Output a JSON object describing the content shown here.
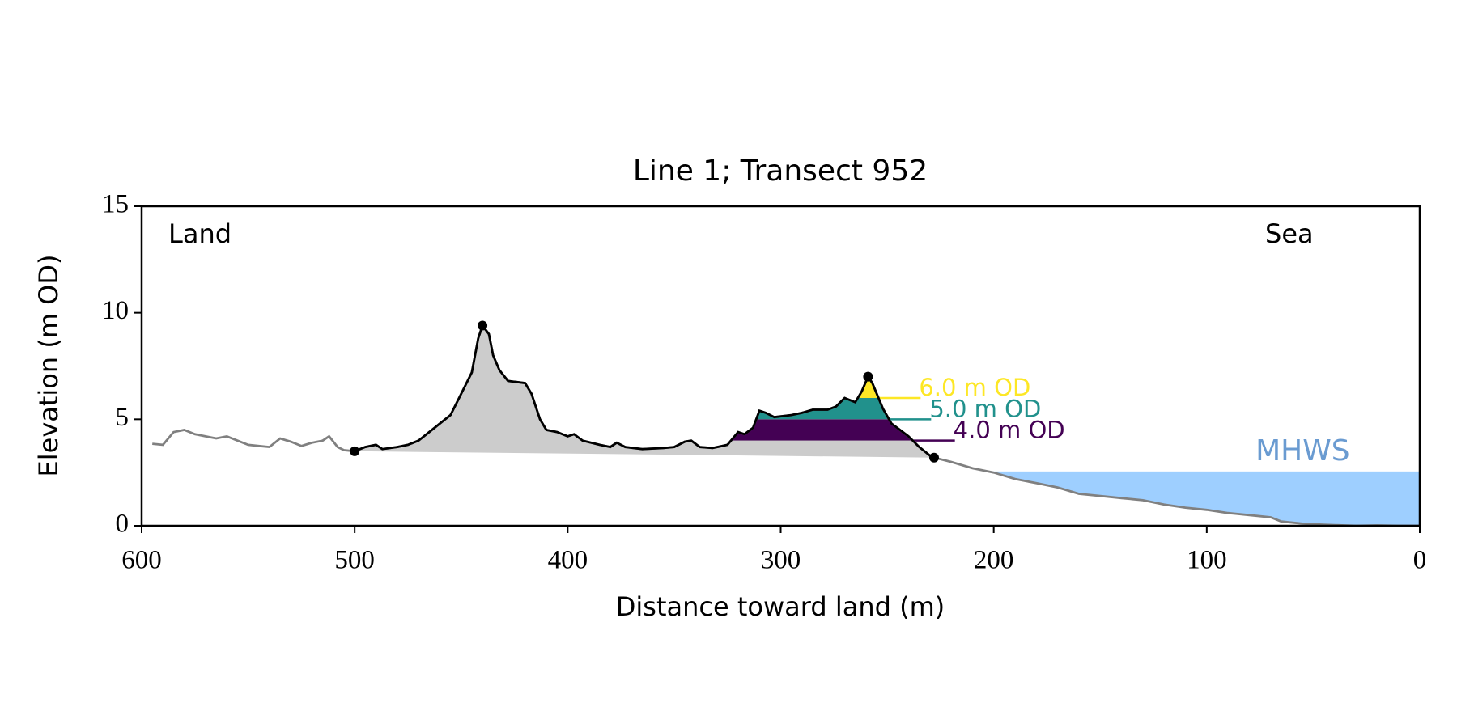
{
  "chart_data": {
    "type": "profile",
    "title": "Line 1; Transect 952",
    "xlabel": "Distance toward land (m)",
    "ylabel": "Elevation (m OD)",
    "annotations": [
      "Land",
      "Sea"
    ],
    "xlim": [
      600,
      0
    ],
    "ylim": [
      0,
      15
    ],
    "xticks": [
      600,
      500,
      400,
      300,
      200,
      100,
      0
    ],
    "yticks": [
      0,
      5,
      10,
      15
    ],
    "x": [
      595,
      590,
      585,
      580,
      575,
      570,
      565,
      560,
      555,
      550,
      545,
      540,
      535,
      530,
      525,
      520,
      515,
      512,
      508,
      505,
      500,
      495,
      490,
      487,
      480,
      475,
      470,
      465,
      460,
      455,
      450,
      445,
      442,
      440,
      437,
      435,
      432,
      428,
      420,
      417,
      413,
      410,
      405,
      400,
      397,
      393,
      385,
      380,
      377,
      373,
      365,
      355,
      350,
      345,
      342,
      338,
      332,
      325,
      320,
      317,
      313,
      310,
      307,
      303,
      295,
      290,
      285,
      278,
      274,
      270,
      265,
      262,
      259,
      257,
      252,
      248,
      244,
      240,
      235,
      230,
      228,
      220,
      210,
      200,
      190,
      180,
      170,
      160,
      150,
      140,
      130,
      120,
      110,
      100,
      90,
      80,
      70,
      65,
      55,
      45,
      30,
      20,
      10,
      0
    ],
    "values": [
      3.85,
      3.8,
      4.4,
      4.5,
      4.3,
      4.2,
      4.1,
      4.2,
      4.0,
      3.8,
      3.75,
      3.7,
      4.1,
      3.95,
      3.75,
      3.9,
      4.0,
      4.2,
      3.7,
      3.55,
      3.5,
      3.7,
      3.8,
      3.6,
      3.7,
      3.8,
      4.0,
      4.4,
      4.8,
      5.2,
      6.2,
      7.2,
      8.8,
      9.4,
      9.0,
      8.0,
      7.3,
      6.8,
      6.7,
      6.2,
      5.0,
      4.5,
      4.4,
      4.2,
      4.3,
      4.0,
      3.8,
      3.7,
      3.9,
      3.7,
      3.6,
      3.65,
      3.7,
      3.95,
      4.0,
      3.7,
      3.65,
      3.8,
      4.4,
      4.3,
      4.6,
      5.4,
      5.3,
      5.1,
      5.2,
      5.3,
      5.45,
      5.45,
      5.6,
      6.0,
      5.8,
      6.3,
      7.0,
      6.7,
      5.5,
      4.8,
      4.5,
      4.2,
      3.7,
      3.3,
      3.2,
      3.0,
      2.7,
      2.5,
      2.2,
      2.0,
      1.8,
      1.5,
      1.4,
      1.3,
      1.2,
      1.0,
      0.85,
      0.75,
      0.6,
      0.5,
      0.4,
      0.2,
      0.1,
      0.05,
      0.0,
      0.02,
      0.0,
      0.0
    ],
    "section": [
      500,
      228
    ],
    "line_color": "#808080",
    "section_color": "#000000",
    "fill_color": "#cccccc",
    "points": {
      "x": [
        500,
        440,
        259,
        228
      ],
      "y": [
        3.5,
        9.4,
        7.0,
        3.2
      ]
    },
    "levels": [
      {
        "value": 4.0,
        "label": "4.0 m OD",
        "color": "#440154"
      },
      {
        "value": 5.0,
        "label": "5.0 m OD",
        "color": "#21918c"
      },
      {
        "value": 6.0,
        "label": "6.0 m OD",
        "color": "#fde725"
      }
    ],
    "mhws": {
      "value": 2.55,
      "label": "MHWS",
      "color": "#9ecfff",
      "label_color": "#6a9bd1"
    }
  }
}
